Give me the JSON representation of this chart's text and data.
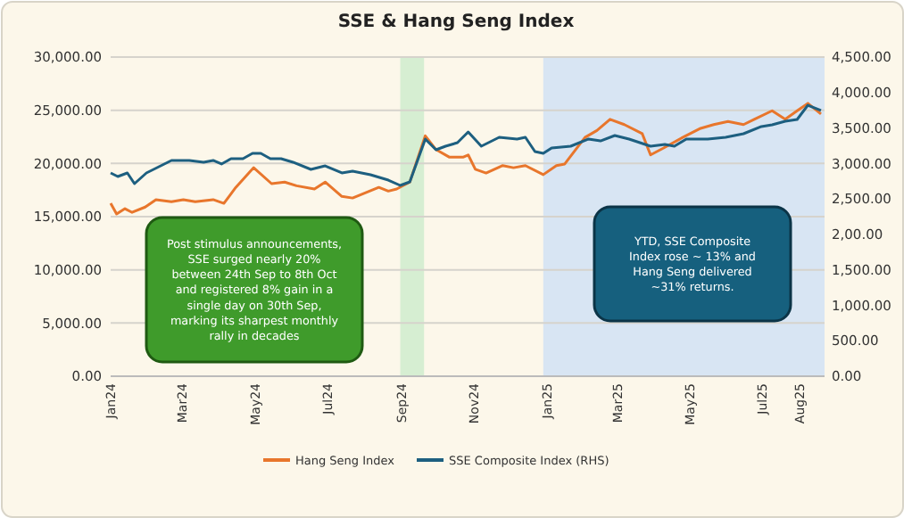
{
  "chart_data": {
    "type": "line",
    "title": "SSE & Hang Seng Index",
    "xlim": [
      "2024-01-01",
      "2025-08-22"
    ],
    "xticks": [
      {
        "value": "2024-01-01",
        "label": "Jan24"
      },
      {
        "value": "2024-03-01",
        "label": "Mar24"
      },
      {
        "value": "2024-05-01",
        "label": "May24"
      },
      {
        "value": "2024-07-01",
        "label": "Jul24"
      },
      {
        "value": "2024-09-01",
        "label": "Sep24"
      },
      {
        "value": "2024-11-01",
        "label": "Nov24"
      },
      {
        "value": "2025-01-01",
        "label": "Jan25"
      },
      {
        "value": "2025-03-01",
        "label": "Mar25"
      },
      {
        "value": "2025-05-01",
        "label": "May25"
      },
      {
        "value": "2025-07-01",
        "label": "Jul25"
      },
      {
        "value": "2025-08-01",
        "label": "Aug25"
      }
    ],
    "ylim": [
      0,
      30000
    ],
    "yticks": [
      {
        "value": 0,
        "label": "0.00"
      },
      {
        "value": 5000,
        "label": "5,000.00"
      },
      {
        "value": 10000,
        "label": "10,000.00"
      },
      {
        "value": 15000,
        "label": "15,000.00"
      },
      {
        "value": 20000,
        "label": "20,000.00"
      },
      {
        "value": 25000,
        "label": "25,000.00"
      },
      {
        "value": 30000,
        "label": "30,000.00"
      }
    ],
    "y2lim": [
      0,
      4500
    ],
    "y2ticks": [
      {
        "value": 0,
        "label": "0.00"
      },
      {
        "value": 500,
        "label": "500.00"
      },
      {
        "value": 1000,
        "label": "1,000.00"
      },
      {
        "value": 1500,
        "label": "1,500.00"
      },
      {
        "value": 2000,
        "label": "2,00.00"
      },
      {
        "value": 2500,
        "label": "2,500.00"
      },
      {
        "value": 3000,
        "label": "3,000.00"
      },
      {
        "value": 3500,
        "label": "3,500.00"
      },
      {
        "value": 4000,
        "label": "4,000.00"
      },
      {
        "value": 4500,
        "label": "4,500.00"
      }
    ],
    "grid": "y",
    "legend": "bottom",
    "marker": "none",
    "line_style": "solid",
    "bands": [
      {
        "axis": "x",
        "from": "2024-08-31",
        "to": "2024-09-20",
        "color": "#d6eed2"
      },
      {
        "axis": "x",
        "from": "2024-12-29",
        "to": "2025-08-22",
        "color": "#d8e5f3"
      }
    ],
    "annotations": [
      "Post stimulus announcements, SSE surged nearly 20% between 24th Sep to 8th Oct and registered 8% gain in a single day on 30th Sep, marking its sharpest monthly rally in decades",
      "YTD, SSE Composite Index rose ~ 13% and Hang Seng delivered ~31% returns."
    ],
    "series": [
      {
        "name": "Hang Seng Index",
        "color": "#e8762c",
        "x": [
          "2024-01-01",
          "2024-01-06",
          "2024-01-13",
          "2024-01-19",
          "2024-01-30",
          "2024-02-08",
          "2024-02-21",
          "2024-03-02",
          "2024-03-12",
          "2024-03-27",
          "2024-04-05",
          "2024-04-15",
          "2024-04-30",
          "2024-05-15",
          "2024-05-26",
          "2024-06-05",
          "2024-06-20",
          "2024-06-29",
          "2024-07-13",
          "2024-07-22",
          "2024-08-13",
          "2024-08-21",
          "2024-08-28",
          "2024-09-08",
          "2024-09-15",
          "2024-09-21",
          "2024-09-30",
          "2024-10-11",
          "2024-10-23",
          "2024-10-27",
          "2024-11-02",
          "2024-11-11",
          "2024-11-25",
          "2024-12-04",
          "2024-12-14",
          "2024-12-29",
          "2025-01-09",
          "2025-01-16",
          "2025-02-02",
          "2025-02-12",
          "2025-02-23",
          "2025-03-07",
          "2025-03-22",
          "2025-03-29",
          "2025-04-09",
          "2025-04-25",
          "2025-05-10",
          "2025-05-21",
          "2025-06-02",
          "2025-06-15",
          "2025-06-24",
          "2025-07-09",
          "2025-07-20",
          "2025-07-30",
          "2025-08-08",
          "2025-08-19"
        ],
        "values": [
          16250,
          15250,
          15750,
          15400,
          15900,
          16600,
          16400,
          16600,
          16400,
          16600,
          16250,
          17750,
          19600,
          18100,
          18250,
          17900,
          17600,
          18250,
          16900,
          16750,
          17750,
          17400,
          17600,
          18250,
          20600,
          22600,
          21300,
          20600,
          20600,
          20800,
          19450,
          19100,
          19800,
          19600,
          19800,
          18950,
          19800,
          19950,
          22450,
          23100,
          24150,
          23650,
          22800,
          20800,
          21450,
          22450,
          23300,
          23650,
          23950,
          23650,
          24150,
          24950,
          24150,
          24950,
          25650,
          24650
        ]
      },
      {
        "name": "SSE Composite Index (RHS)",
        "color": "#1d5f80",
        "axis": "y2",
        "x": [
          "2024-01-01",
          "2024-01-07",
          "2024-01-15",
          "2024-01-21",
          "2024-01-31",
          "2024-02-21",
          "2024-03-07",
          "2024-03-19",
          "2024-03-27",
          "2024-04-03",
          "2024-04-11",
          "2024-04-21",
          "2024-04-29",
          "2024-05-06",
          "2024-05-14",
          "2024-05-23",
          "2024-06-02",
          "2024-06-17",
          "2024-06-29",
          "2024-07-13",
          "2024-07-22",
          "2024-08-06",
          "2024-08-21",
          "2024-08-31",
          "2024-09-08",
          "2024-09-21",
          "2024-09-30",
          "2024-10-08",
          "2024-10-18",
          "2024-10-27",
          "2024-11-07",
          "2024-11-22",
          "2024-12-07",
          "2024-12-14",
          "2024-12-22",
          "2024-12-29",
          "2025-01-05",
          "2025-01-21",
          "2025-02-05",
          "2025-02-15",
          "2025-02-27",
          "2025-03-11",
          "2025-03-29",
          "2025-04-10",
          "2025-04-18",
          "2025-04-28",
          "2025-05-16",
          "2025-05-31",
          "2025-06-15",
          "2025-06-30",
          "2025-07-09",
          "2025-07-20",
          "2025-07-30",
          "2025-08-08",
          "2025-08-19"
        ],
        "values": [
          2866,
          2816,
          2866,
          2715,
          2866,
          3042,
          3042,
          3017,
          3042,
          2992,
          3067,
          3067,
          3142,
          3142,
          3067,
          3067,
          3017,
          2916,
          2966,
          2866,
          2891,
          2841,
          2765,
          2690,
          2740,
          3344,
          3193,
          3243,
          3293,
          3444,
          3243,
          3369,
          3344,
          3369,
          3168,
          3142,
          3218,
          3243,
          3344,
          3318,
          3394,
          3344,
          3243,
          3268,
          3243,
          3344,
          3344,
          3369,
          3419,
          3520,
          3545,
          3595,
          3620,
          3821,
          3746
        ]
      }
    ]
  }
}
